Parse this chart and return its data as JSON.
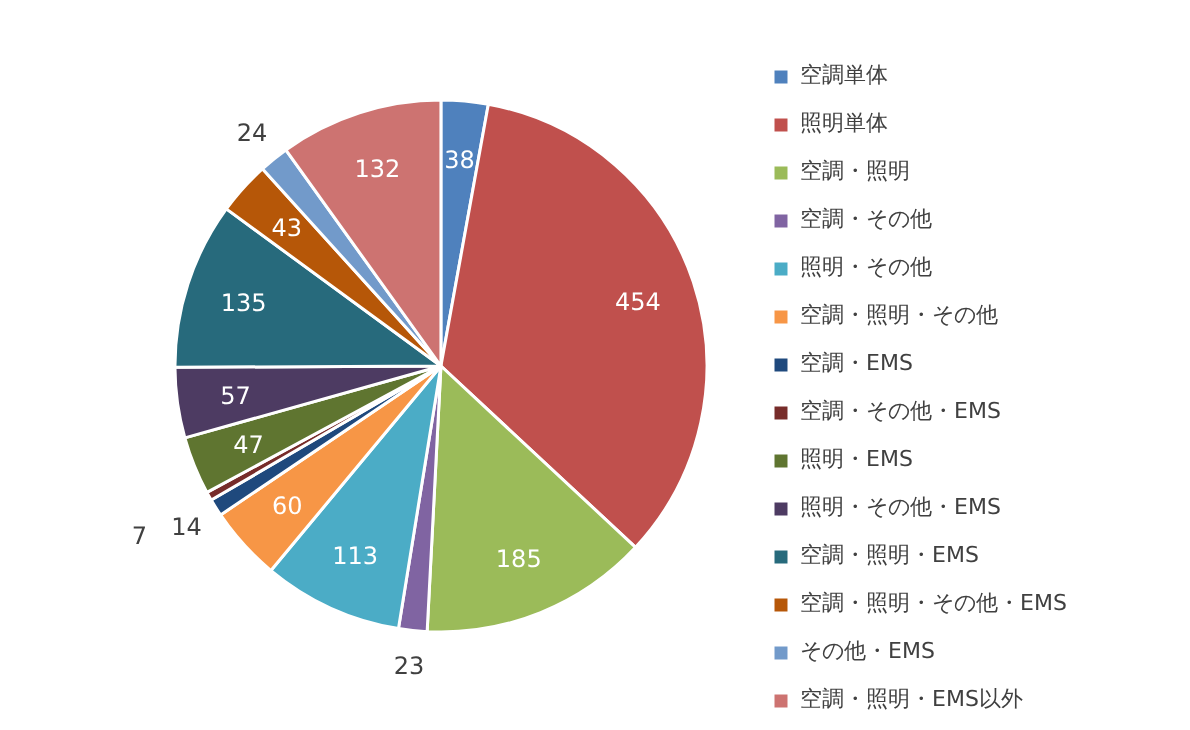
{
  "chart_data": {
    "type": "pie",
    "categories": [
      "空調単体",
      "照明単体",
      "空調・照明",
      "空調・その他",
      "照明・その他",
      "空調・照明・その他",
      "空調・EMS",
      "空調・その他・EMS",
      "照明・EMS",
      "照明・その他・EMS",
      "空調・照明・EMS",
      "空調・照明・その他・EMS",
      "その他・EMS",
      "空調・照明・EMS以外"
    ],
    "values": [
      38,
      454,
      185,
      23,
      113,
      60,
      14,
      7,
      47,
      57,
      135,
      43,
      24,
      132
    ],
    "colors": [
      "#4f81bd",
      "#c0504d",
      "#9bbb59",
      "#8064a2",
      "#4bacc6",
      "#f79646",
      "#1f497d",
      "#772c2a",
      "#5f7530",
      "#4d3b62",
      "#276a7c",
      "#b65708",
      "#729aca",
      "#cd7371"
    ],
    "data_labels": true,
    "legend": "right"
  }
}
